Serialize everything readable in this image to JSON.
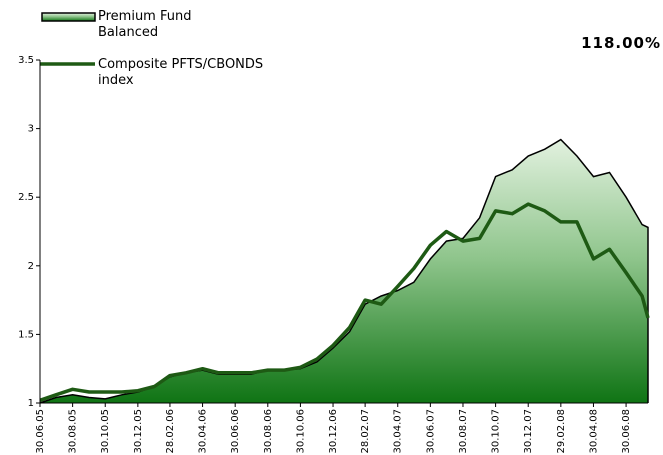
{
  "chart_data": {
    "type": "area_line",
    "annotation": "118.00%",
    "x": [
      "30.06.05",
      "30.07.05",
      "30.08.05",
      "30.09.05",
      "30.10.05",
      "30.11.05",
      "30.12.05",
      "30.01.06",
      "28.02.06",
      "30.03.06",
      "30.04.06",
      "30.05.06",
      "30.06.06",
      "30.07.06",
      "30.08.06",
      "30.09.06",
      "30.10.06",
      "30.11.06",
      "30.12.06",
      "30.01.07",
      "28.02.07",
      "30.03.07",
      "30.04.07",
      "30.05.07",
      "30.06.07",
      "30.07.07",
      "30.08.07",
      "30.09.07",
      "30.10.07",
      "30.11.07",
      "30.12.07",
      "30.01.08",
      "29.02.08",
      "30.03.08",
      "30.04.08",
      "30.05.08",
      "30.06.08",
      "30.07.08",
      "10.08.08"
    ],
    "xlim": [
      "30.06.05",
      "10.08.08"
    ],
    "xticks": [
      "30.06.05",
      "30.08.05",
      "30.10.05",
      "30.12.05",
      "28.02.06",
      "30.04.06",
      "30.06.06",
      "30.08.06",
      "30.10.06",
      "30.12.06",
      "28.02.07",
      "30.04.07",
      "30.06.07",
      "30.08.07",
      "30.10.07",
      "30.12.07",
      "29.02.08",
      "30.04.08",
      "30.06.08"
    ],
    "ylim": [
      1,
      3.5
    ],
    "yticks": [
      1,
      1.5,
      2,
      2.5,
      3,
      3.5
    ],
    "series": [
      {
        "name": "Premium Fund Balanced",
        "kind": "area",
        "color": "#117a17",
        "values": [
          1.0,
          1.04,
          1.06,
          1.04,
          1.03,
          1.06,
          1.08,
          1.12,
          1.19,
          1.22,
          1.24,
          1.21,
          1.21,
          1.21,
          1.24,
          1.24,
          1.25,
          1.3,
          1.4,
          1.52,
          1.72,
          1.78,
          1.82,
          1.88,
          2.05,
          2.18,
          2.2,
          2.35,
          2.65,
          2.7,
          2.8,
          2.85,
          2.92,
          2.8,
          2.65,
          2.68,
          2.5,
          2.3,
          2.28
        ]
      },
      {
        "name": "Composite PFTS/CBONDS index",
        "kind": "line",
        "color": "#1e5a14",
        "values": [
          1.02,
          1.06,
          1.1,
          1.08,
          1.08,
          1.08,
          1.09,
          1.12,
          1.2,
          1.22,
          1.25,
          1.22,
          1.22,
          1.22,
          1.24,
          1.24,
          1.26,
          1.32,
          1.42,
          1.55,
          1.75,
          1.72,
          1.85,
          1.98,
          2.15,
          2.25,
          2.18,
          2.2,
          2.4,
          2.38,
          2.45,
          2.4,
          2.32,
          2.32,
          2.05,
          2.12,
          1.95,
          1.78,
          1.62
        ]
      }
    ]
  }
}
